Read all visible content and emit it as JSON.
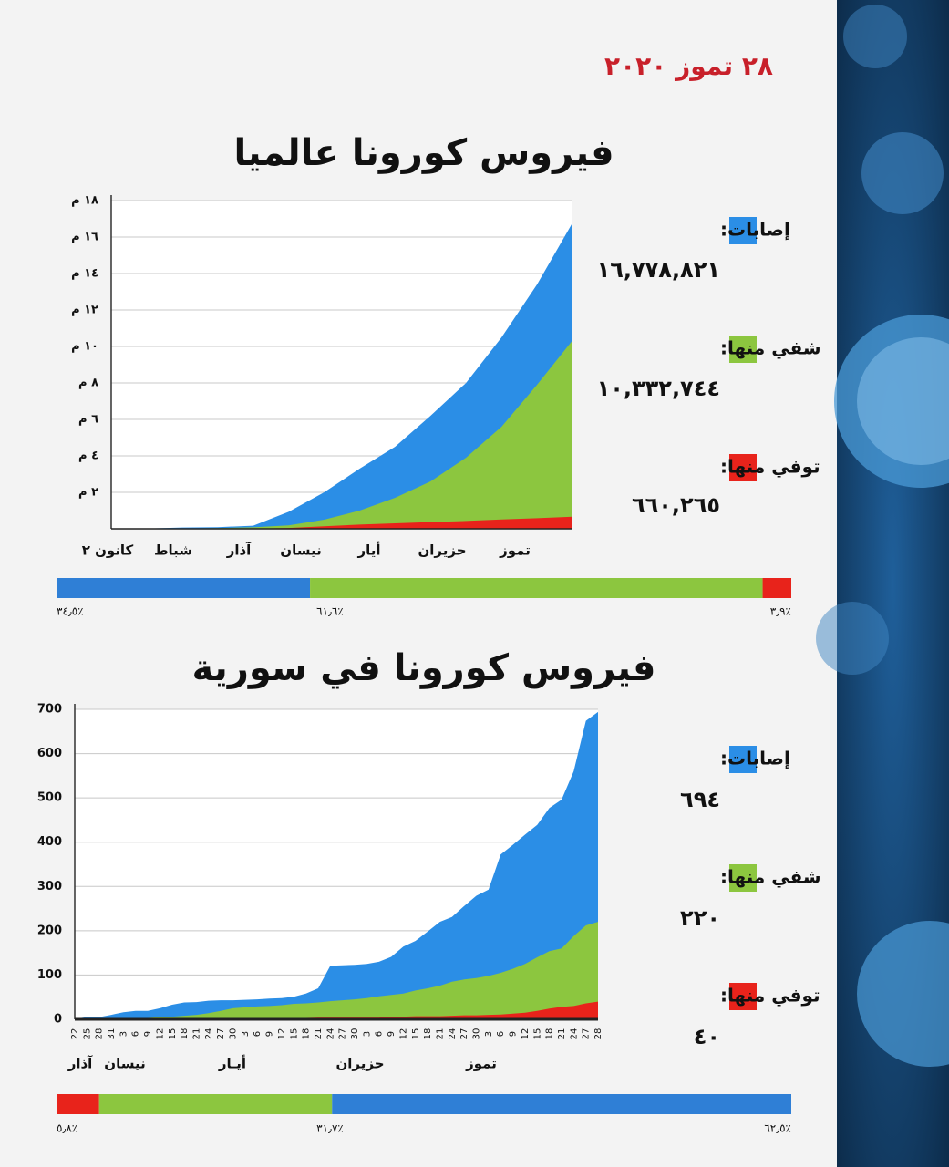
{
  "date": "٢٨ تموز ٢٠٢٠",
  "chart_data": [
    {
      "type": "area",
      "title": "فيروس كورونا عالميا",
      "categories": [
        null,
        null,
        null,
        null,
        null,
        null,
        null,
        null,
        null,
        null,
        null,
        null,
        null,
        null
      ],
      "months": [
        "كانون ٢",
        "شباط",
        "آذار",
        "نيسان",
        "أيار",
        "حزيران",
        "تموز"
      ],
      "series": [
        {
          "name": "إصابات:",
          "color": "#2b8ee6",
          "values": [
            0.0006,
            0.012,
            0.069,
            0.088,
            0.17,
            0.93,
            2.0,
            3.3,
            4.5,
            6.2,
            8.0,
            10.5,
            13.4,
            16.78
          ],
          "total": 16.778821,
          "total_label": "١٦,٧٧٨,٨٢١"
        },
        {
          "name": "شفي منها:",
          "color": "#8cc63f",
          "values": [
            0,
            0.0003,
            0.01,
            0.04,
            0.08,
            0.19,
            0.5,
            1.0,
            1.7,
            2.6,
            3.9,
            5.6,
            7.9,
            10.33
          ],
          "total": 10.332744,
          "total_label": "١٠,٣٣٢,٧٤٤"
        },
        {
          "name": "توفي منها:",
          "color": "#e8231b",
          "values": [
            0,
            0.0003,
            0.0017,
            0.003,
            0.006,
            0.047,
            0.14,
            0.23,
            0.3,
            0.37,
            0.43,
            0.51,
            0.58,
            0.66
          ],
          "total": 0.660265,
          "total_label": "٦٦٠,٢٦٥"
        }
      ],
      "ylim": [
        0,
        18
      ],
      "yticks": [
        {
          "value": 2,
          "label": "٢ م"
        },
        {
          "value": 4,
          "label": "٤ م"
        },
        {
          "value": 6,
          "label": "٦ م"
        },
        {
          "value": 8,
          "label": "٨ م"
        },
        {
          "value": 10,
          "label": "١٠ م"
        },
        {
          "value": 12,
          "label": "١٢ م"
        },
        {
          "value": 14,
          "label": "١٤ م"
        },
        {
          "value": 16,
          "label": "١٦ م"
        },
        {
          "value": 18,
          "label": "١٨ م"
        }
      ],
      "grid": true,
      "shares": [
        {
          "value": 34.5,
          "label": "٣٤٫٥٪",
          "color": "#2f7fd6"
        },
        {
          "value": 61.6,
          "label": "٦١٫٦٪",
          "color": "#8cc63f"
        },
        {
          "value": 3.9,
          "label": "٣٫٩٪",
          "color": "#e8231b"
        }
      ]
    },
    {
      "type": "area",
      "title": "فيروس كورونا في سورية",
      "categories": [
        "22",
        "25",
        "28",
        "31",
        "3",
        "6",
        "9",
        "12",
        "15",
        "18",
        "21",
        "24",
        "27",
        "30",
        "3",
        "6",
        "9",
        "12",
        "15",
        "18",
        "21",
        "24",
        "27",
        "30",
        "3",
        "6",
        "9",
        "12",
        "15",
        "18",
        "21",
        "24",
        "27",
        "30",
        "3",
        "6",
        "9",
        "12",
        "15",
        "18",
        "21",
        "24",
        "27",
        "28"
      ],
      "months": [
        "آذار",
        "نيسان",
        "أيـار",
        "حزيران",
        "تموز"
      ],
      "series": [
        {
          "name": "إصابات:",
          "color": "#2b8ee6",
          "values": [
            1,
            5,
            5,
            10,
            16,
            19,
            19,
            25,
            33,
            38,
            39,
            42,
            43,
            43,
            44,
            45,
            47,
            48,
            51,
            58,
            70,
            121,
            122,
            123,
            125,
            130,
            141,
            164,
            177,
            198,
            220,
            231,
            256,
            279,
            293,
            372,
            394,
            417,
            439,
            477,
            496,
            560,
            674,
            694
          ],
          "total": 694,
          "total_label": "٦٩٤"
        },
        {
          "name": "شفي منها:",
          "color": "#8cc63f",
          "values": [
            0,
            0,
            0,
            0,
            0,
            2,
            3,
            5,
            6,
            8,
            10,
            14,
            19,
            25,
            27,
            29,
            30,
            32,
            35,
            36,
            38,
            41,
            43,
            45,
            48,
            52,
            55,
            58,
            65,
            70,
            76,
            85,
            90,
            93,
            98,
            105,
            114,
            125,
            140,
            154,
            160,
            188,
            212,
            220
          ],
          "total": 220,
          "total_label": "٢٢٠"
        },
        {
          "name": "توفي منها:",
          "color": "#e8231b",
          "values": [
            0,
            0,
            1,
            2,
            2,
            2,
            2,
            2,
            2,
            2,
            2,
            3,
            3,
            3,
            3,
            3,
            3,
            3,
            3,
            3,
            4,
            4,
            4,
            4,
            4,
            4,
            6,
            6,
            7,
            7,
            7,
            8,
            9,
            9,
            10,
            11,
            13,
            15,
            19,
            24,
            28,
            30,
            36,
            40
          ],
          "total": 40,
          "total_label": "٤٠"
        }
      ],
      "ylim": [
        0,
        700
      ],
      "yticks": [
        0,
        100,
        200,
        300,
        400,
        500,
        600,
        700
      ],
      "grid": true,
      "shares": [
        {
          "value": 5.8,
          "label": "٥٫٨٪",
          "color": "#e8231b"
        },
        {
          "value": 31.7,
          "label": "٣١٫٧٪",
          "color": "#8cc63f"
        },
        {
          "value": 62.5,
          "label": "٦٢٫٥٪",
          "color": "#2f7fd6"
        }
      ]
    }
  ]
}
